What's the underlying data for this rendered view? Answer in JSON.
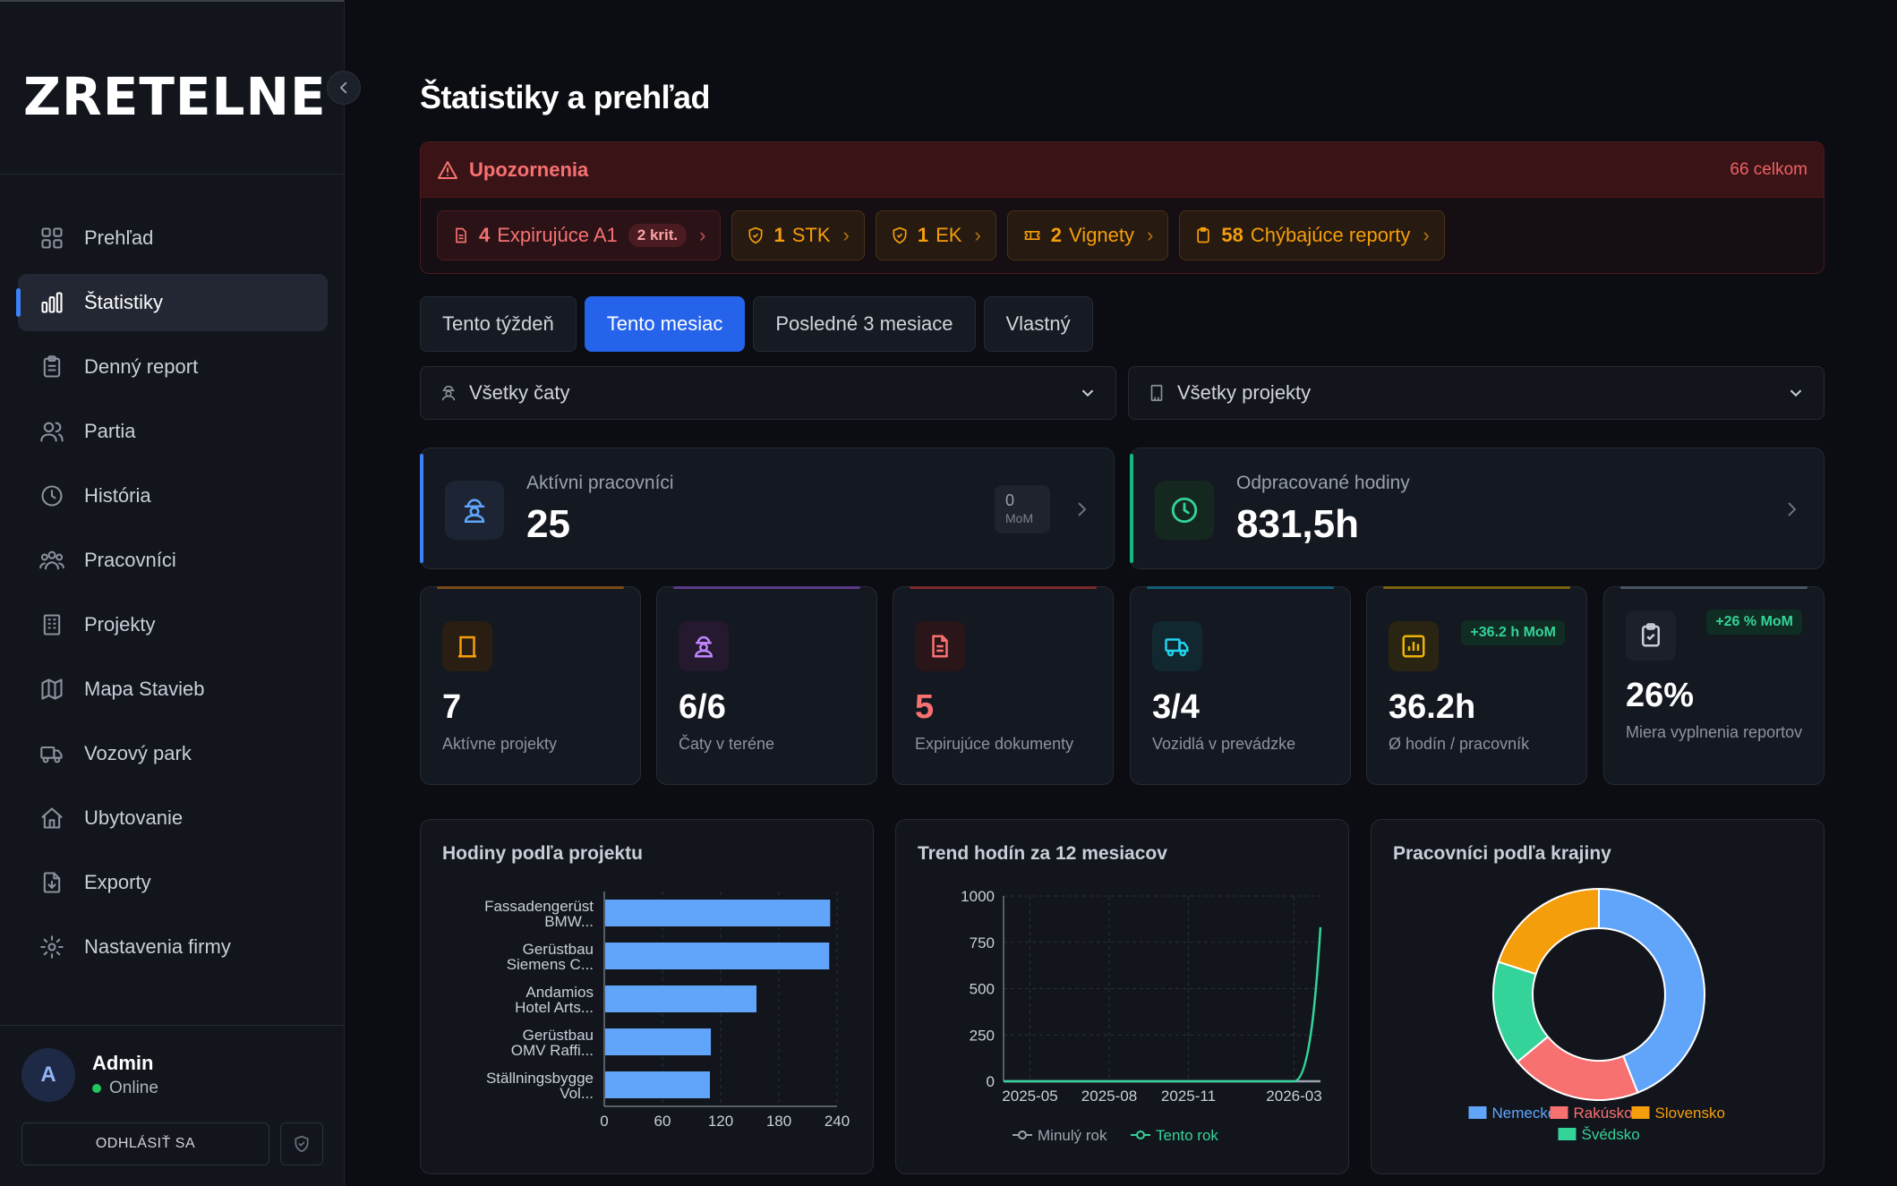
{
  "sidebar": {
    "logo": "ZRETELNE",
    "items": [
      {
        "label": "Prehľad",
        "icon": "grid-icon"
      },
      {
        "label": "Štatistiky",
        "icon": "bar-chart-icon",
        "active": true
      },
      {
        "label": "Denný report",
        "icon": "clipboard-icon"
      },
      {
        "label": "Partia",
        "icon": "users-icon"
      },
      {
        "label": "História",
        "icon": "clock-icon"
      },
      {
        "label": "Pracovníci",
        "icon": "team-icon"
      },
      {
        "label": "Projekty",
        "icon": "building-icon"
      },
      {
        "label": "Mapa Stavieb",
        "icon": "map-icon"
      },
      {
        "label": "Vozový park",
        "icon": "truck-icon"
      },
      {
        "label": "Ubytovanie",
        "icon": "home-icon"
      },
      {
        "label": "Exporty",
        "icon": "file-download-icon"
      },
      {
        "label": "Nastavenia firmy",
        "icon": "gear-icon"
      }
    ],
    "user": {
      "initial": "A",
      "name": "Admin",
      "status": "Online"
    },
    "logout_label": "ODHLÁSIŤ SA"
  },
  "header": {
    "title": "Štatistiky a prehľad"
  },
  "alerts": {
    "title": "Upozornenia",
    "total": "66 celkom",
    "chips": [
      {
        "count": "4",
        "label": "Expirujúce A1",
        "badge": "2 krit.",
        "tone": "red"
      },
      {
        "count": "1",
        "label": "STK",
        "tone": "orange"
      },
      {
        "count": "1",
        "label": "EK",
        "tone": "orange"
      },
      {
        "count": "2",
        "label": "Vignety",
        "tone": "orange"
      },
      {
        "count": "58",
        "label": "Chýbajúce reporty",
        "tone": "orange"
      }
    ]
  },
  "tabs": [
    "Tento týždeň",
    "Tento mesiac",
    "Posledné 3 mesiace",
    "Vlastný"
  ],
  "active_tab": "Tento mesiac",
  "filters": {
    "crews": "Všetky čaty",
    "projects": "Všetky projekty"
  },
  "kpis": {
    "workers": {
      "label": "Aktívni pracovníci",
      "value": "25",
      "mom_value": "0",
      "mom_label": "MoM",
      "accent": "#3b82f6"
    },
    "hours": {
      "label": "Odpracované hodiny",
      "value": "831,5h",
      "accent": "#10b981"
    }
  },
  "stats": [
    {
      "value": "7",
      "label": "Aktívne projekty",
      "color": "#f59e0b"
    },
    {
      "value": "6/6",
      "label": "Čaty v teréne",
      "color": "#a855f7"
    },
    {
      "value": "5",
      "label": "Expirujúce dokumenty",
      "color": "#ef4444"
    },
    {
      "value": "3/4",
      "label": "Vozidlá v prevádzke",
      "color": "#06b6d4"
    },
    {
      "value": "36.2h",
      "label": "Ø hodín / pracovník",
      "badge": "+36.2 h MoM",
      "color": "#eab308"
    },
    {
      "value": "26%",
      "label": "Miera vyplnenia reportov",
      "badge": "+26 % MoM",
      "color": "#9ca3af"
    }
  ],
  "chart_data": [
    {
      "type": "bar",
      "title": "Hodiny podľa projektu",
      "orientation": "horizontal",
      "categories": [
        [
          "Fassadengerüst",
          "BMW..."
        ],
        [
          "Gerüstbau",
          "Siemens C..."
        ],
        [
          "Andamios",
          "Hotel Arts..."
        ],
        [
          "Gerüstbau",
          "OMV Raffi..."
        ],
        [
          "Ställningsbygge",
          "Vol..."
        ]
      ],
      "values": [
        232,
        231,
        156,
        109,
        108
      ],
      "xlim": [
        0,
        240
      ],
      "xticks": [
        "0",
        "60",
        "120",
        "180",
        "240"
      ],
      "color": "#60a5fa",
      "grid": true
    },
    {
      "type": "line",
      "title": "Trend hodín za 12 mesiacov",
      "x": [
        "2025-04",
        "2025-05",
        "2025-06",
        "2025-07",
        "2025-08",
        "2025-09",
        "2025-10",
        "2025-11",
        "2025-12",
        "2026-01",
        "2026-02",
        "2026-03",
        "2026-04"
      ],
      "xticks": [
        "2025-05",
        "2025-08",
        "2025-11",
        "2026-03"
      ],
      "series": [
        {
          "name": "Minulý rok",
          "values": [
            0,
            0,
            0,
            0,
            0,
            0,
            0,
            0,
            0,
            0,
            0,
            0,
            0
          ],
          "color": "#9ca3af"
        },
        {
          "name": "Tento rok",
          "values": [
            0,
            0,
            0,
            0,
            0,
            0,
            0,
            0,
            0,
            0,
            0,
            0,
            831.5
          ],
          "color": "#34d399"
        }
      ],
      "ylim": [
        0,
        1000
      ],
      "yticks": [
        "0",
        "250",
        "500",
        "750",
        "1000"
      ],
      "grid": true,
      "legend": "bottom"
    },
    {
      "type": "pie",
      "title": "Pracovníci podľa krajiny",
      "donut": true,
      "slices": [
        {
          "name": "Nemecko",
          "value": 11,
          "color": "#60a5fa"
        },
        {
          "name": "Rakúsko",
          "value": 5,
          "color": "#f87171"
        },
        {
          "name": "Švédsko",
          "value": 4,
          "color": "#34d399"
        },
        {
          "name": "Slovensko",
          "value": 5,
          "color": "#f59e0b"
        }
      ],
      "legend": "bottom"
    }
  ]
}
